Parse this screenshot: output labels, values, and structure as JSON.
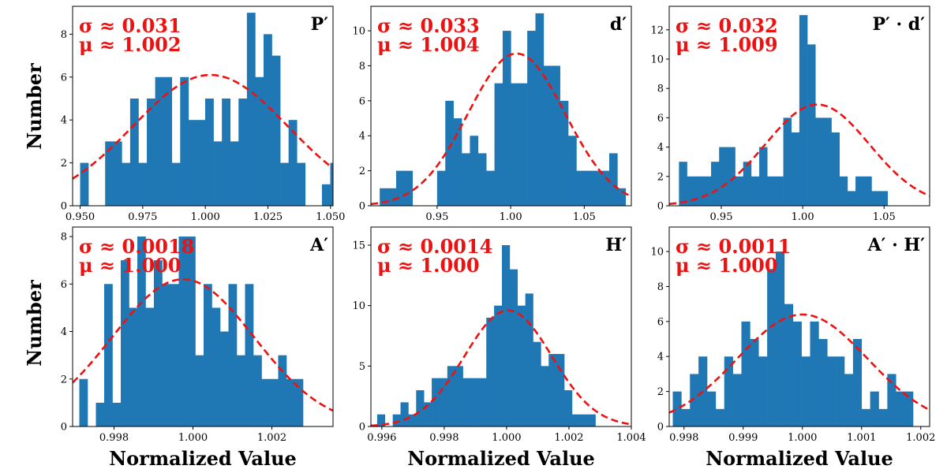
{
  "colors": {
    "bar": "#1f77b4",
    "fit": "#ee1111",
    "stat_text": "#ee1111"
  },
  "figure": {
    "xlabel": "Normalized Value",
    "ylabel": "Number"
  },
  "chart_data": [
    {
      "type": "bar",
      "title": "P′",
      "sigma_text": "σ ≈ 0.031",
      "mu_text": "μ ≈ 1.002",
      "mu": 1.002,
      "sigma": 0.031,
      "fit_peak": 6.1,
      "xlim": [
        0.947,
        1.051
      ],
      "ylim": [
        0,
        9.3
      ],
      "bin_start": 0.95,
      "bin_width": 0.00333,
      "values": [
        2,
        0,
        0,
        3,
        3,
        2,
        5,
        2,
        5,
        6,
        6,
        2,
        6,
        4,
        4,
        5,
        3,
        5,
        3,
        5,
        9,
        6,
        8,
        7,
        2,
        4,
        2,
        0,
        0,
        1,
        2
      ],
      "xticks": [
        0.95,
        0.975,
        1.0,
        1.025,
        1.05
      ],
      "xtick_labels": [
        "0.950",
        "0.975",
        "1.000",
        "1.025",
        "1.050"
      ],
      "yticks": [
        0,
        2,
        4,
        6,
        8
      ],
      "ytick_labels": [
        "0",
        "2",
        "4",
        "6",
        "8"
      ]
    },
    {
      "type": "bar",
      "title": "d′",
      "sigma_text": "σ ≈ 0.033",
      "mu_text": "μ ≈ 1.004",
      "mu": 1.004,
      "sigma": 0.033,
      "fit_peak": 8.7,
      "xlim": [
        0.905,
        1.082
      ],
      "ylim": [
        0,
        11.4
      ],
      "bin_start": 0.911,
      "bin_width": 0.00557,
      "values": [
        1,
        1,
        2,
        2,
        0,
        0,
        0,
        2,
        6,
        5,
        3,
        4,
        3,
        2,
        7,
        10,
        7,
        7,
        10,
        11,
        8,
        8,
        6,
        4,
        2,
        2,
        2,
        2,
        3,
        1
      ],
      "xticks": [
        0.95,
        1.0,
        1.05
      ],
      "xtick_labels": [
        "0.95",
        "1.00",
        "1.05"
      ],
      "yticks": [
        0,
        2,
        4,
        6,
        8,
        10
      ],
      "ytick_labels": [
        "0",
        "2",
        "4",
        "6",
        "8",
        "10"
      ]
    },
    {
      "type": "bar",
      "title": "P′ · d′",
      "sigma_text": "σ ≈ 0.032",
      "mu_text": "μ ≈ 1.009",
      "mu": 1.009,
      "sigma": 0.032,
      "fit_peak": 6.9,
      "xlim": [
        0.918,
        1.078
      ],
      "ylim": [
        0,
        13.6
      ],
      "bin_start": 0.924,
      "bin_width": 0.00493,
      "values": [
        3,
        2,
        2,
        2,
        3,
        4,
        4,
        2,
        3,
        2,
        4,
        2,
        2,
        6,
        5,
        13,
        11,
        6,
        6,
        5,
        2,
        1,
        2,
        2,
        1,
        1
      ],
      "xticks": [
        0.95,
        1.0,
        1.05
      ],
      "xtick_labels": [
        "0.95",
        "1.00",
        "1.05"
      ],
      "yticks": [
        0,
        2,
        4,
        6,
        8,
        10,
        12
      ],
      "ytick_labels": [
        "0",
        "2",
        "4",
        "6",
        "8",
        "10",
        "12"
      ]
    },
    {
      "type": "bar",
      "title": "A′",
      "sigma_text": "σ ≈ 0.0018",
      "mu_text": "μ ≈ 1.000",
      "mu": 0.99975,
      "sigma": 0.0018,
      "fit_peak": 6.2,
      "xlim": [
        0.99695,
        1.00355
      ],
      "ylim": [
        0,
        8.4
      ],
      "bin_start": 0.99712,
      "bin_width": 0.00021,
      "values": [
        2,
        0,
        1,
        6,
        1,
        7,
        5,
        8,
        5,
        7,
        6,
        6,
        8,
        8,
        3,
        6,
        5,
        4,
        6,
        3,
        6,
        3,
        2,
        2,
        3,
        2,
        2
      ],
      "xticks": [
        0.998,
        1.0,
        1.002
      ],
      "xtick_labels": [
        "0.998",
        "1.000",
        "1.002"
      ],
      "yticks": [
        0,
        2,
        4,
        6,
        8
      ],
      "ytick_labels": [
        "0",
        "2",
        "4",
        "6",
        "8"
      ]
    },
    {
      "type": "bar",
      "title": "H′",
      "sigma_text": "σ ≈ 0.0014",
      "mu_text": "μ ≈ 1.000",
      "mu": 1.00005,
      "sigma": 0.0014,
      "fit_peak": 9.6,
      "xlim": [
        0.99565,
        1.004
      ],
      "ylim": [
        0,
        16.5
      ],
      "bin_start": 0.99585,
      "bin_width": 0.00025,
      "values": [
        1,
        0,
        1,
        2,
        1,
        3,
        2,
        4,
        4,
        5,
        5,
        4,
        4,
        4,
        9,
        10,
        15,
        13,
        10,
        11,
        7,
        5,
        6,
        6,
        3,
        1,
        1,
        1
      ],
      "xticks": [
        0.996,
        0.998,
        1.0,
        1.002,
        1.004
      ],
      "xtick_labels": [
        "0.996",
        "0.998",
        "1.000",
        "1.002",
        "1.004"
      ],
      "yticks": [
        0,
        5,
        10,
        15
      ],
      "ytick_labels": [
        "0",
        "5",
        "10",
        "15"
      ]
    },
    {
      "type": "bar",
      "title": "A′ · H′",
      "sigma_text": "σ ≈ 0.0011",
      "mu_text": "μ ≈ 1.000",
      "mu": 1.0,
      "sigma": 0.0011,
      "fit_peak": 6.4,
      "xlim": [
        0.99775,
        1.00215
      ],
      "ylim": [
        0,
        11.4
      ],
      "bin_start": 0.99781,
      "bin_width": 0.000145,
      "values": [
        2,
        1,
        3,
        4,
        2,
        1,
        4,
        3,
        6,
        5,
        4,
        9,
        10,
        7,
        6,
        4,
        6,
        5,
        4,
        4,
        3,
        5,
        1,
        2,
        1,
        3,
        2,
        2
      ],
      "xticks": [
        0.998,
        0.999,
        1.0,
        1.001,
        1.002
      ],
      "xtick_labels": [
        "0.998",
        "0.999",
        "1.000",
        "1.001",
        "1.002"
      ],
      "yticks": [
        0,
        2,
        4,
        6,
        8,
        10
      ],
      "ytick_labels": [
        "0",
        "2",
        "4",
        "6",
        "8",
        "10"
      ]
    }
  ]
}
